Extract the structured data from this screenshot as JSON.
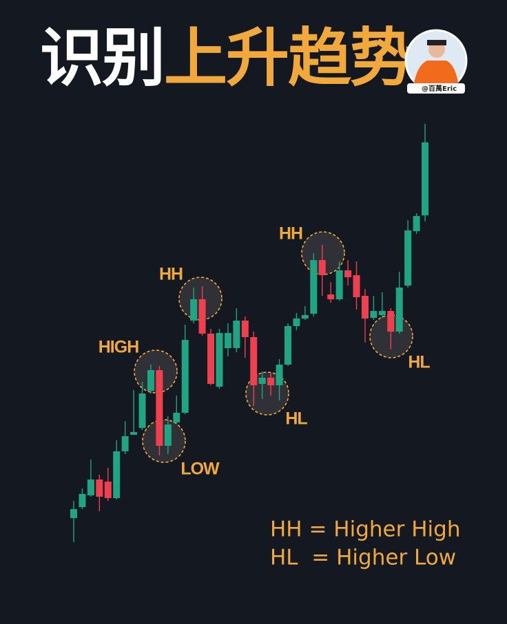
{
  "chart_data": {
    "type": "candlestick",
    "title": "识别",
    "title_highlight": "上升趋势",
    "badge": "@百萬Eric",
    "up_color": "#1fa584",
    "down_color": "#f0404f",
    "annotation_color": "#f2a93b",
    "ylim": [
      0,
      907
    ],
    "open": [
      154,
      170,
      187,
      210,
      207,
      183,
      251,
      275,
      285,
      339,
      369,
      259,
      293,
      307,
      441,
      472,
      422,
      345,
      401,
      401,
      441,
      417,
      349,
      358,
      347,
      377,
      433,
      444,
      451,
      529,
      479,
      472,
      514,
      507,
      477,
      445,
      449,
      455,
      425,
      492,
      571,
      594
    ],
    "close": [
      167,
      189,
      210,
      185,
      183,
      251,
      273,
      279,
      335,
      369,
      259,
      290,
      307,
      413,
      472,
      422,
      349,
      423,
      423,
      441,
      417,
      347,
      358,
      347,
      377,
      433,
      444,
      449,
      529,
      507,
      472,
      514,
      504,
      475,
      444,
      455,
      455,
      425,
      489,
      572,
      593,
      700
    ],
    "high": [
      179,
      197,
      239,
      217,
      227,
      267,
      295,
      340,
      352,
      377,
      375,
      302,
      332,
      435,
      489,
      491,
      429,
      429,
      437,
      459,
      447,
      425,
      367,
      365,
      385,
      437,
      452,
      462,
      539,
      551,
      497,
      527,
      529,
      527,
      487,
      477,
      482,
      459,
      512,
      587,
      597,
      727
    ],
    "low": [
      119,
      167,
      185,
      164,
      179,
      181,
      247,
      275,
      282,
      335,
      245,
      247,
      291,
      305,
      437,
      419,
      347,
      342,
      389,
      395,
      387,
      317,
      327,
      332,
      325,
      375,
      427,
      442,
      447,
      477,
      467,
      470,
      492,
      457,
      409,
      442,
      445,
      399,
      422,
      489,
      567,
      585
    ],
    "annotations": [
      "HIGH",
      "LOW",
      "HH",
      "HL",
      "HH",
      "HL"
    ],
    "legend": [
      "HH = Higher High",
      "HL  = Higher Low"
    ]
  }
}
